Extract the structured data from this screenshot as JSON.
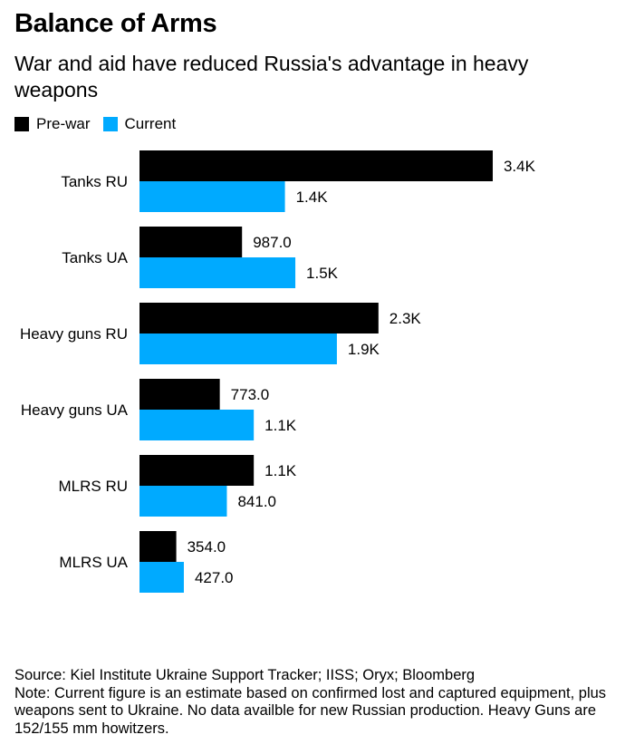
{
  "title": "Balance of Arms",
  "subtitle": "War and aid have reduced Russia's advantage in heavy weapons",
  "colors": {
    "prewar": "#000000",
    "current": "#00aaff"
  },
  "chart_data": {
    "type": "bar",
    "orientation": "horizontal",
    "categories": [
      "Tanks RU",
      "Tanks UA",
      "Heavy guns RU",
      "Heavy guns UA",
      "MLRS RU",
      "MLRS UA"
    ],
    "series": [
      {
        "name": "Pre-war",
        "values": [
          3400,
          987,
          2300,
          773,
          1100,
          354
        ],
        "labels": [
          "3.4K",
          "987.0",
          "2.3K",
          "773.0",
          "1.1K",
          "354.0"
        ]
      },
      {
        "name": "Current",
        "values": [
          1400,
          1500,
          1900,
          1100,
          841,
          427
        ],
        "labels": [
          "1.4K",
          "1.5K",
          "1.9K",
          "1.1K",
          "841.0",
          "427.0"
        ]
      }
    ],
    "legend_position": "top-left",
    "grid": false
  },
  "footer": {
    "source": "Source: Kiel Institute Ukraine Support Tracker; IISS; Oryx; Bloomberg",
    "note": "Note: Current figure is an estimate based on confirmed lost and captured equipment, plus weapons sent to Ukraine. No data availble for new Russian production. Heavy Guns are 152/155 mm howitzers."
  }
}
